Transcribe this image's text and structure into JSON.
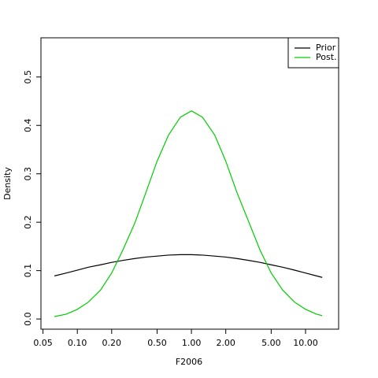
{
  "chart_data": {
    "type": "line",
    "xlabel": "F2006",
    "ylabel": "Density",
    "x": [
      0.063,
      0.08,
      0.1,
      0.125,
      0.16,
      0.2,
      0.25,
      0.32,
      0.4,
      0.5,
      0.63,
      0.8,
      1,
      1.25,
      1.6,
      2,
      2.5,
      3.2,
      4,
      5,
      6.3,
      8,
      10,
      12.5,
      14
    ],
    "series": [
      {
        "name": "Prior",
        "color": "#000000",
        "values": [
          0.089,
          0.095,
          0.101,
          0.107,
          0.112,
          0.117,
          0.121,
          0.125,
          0.128,
          0.13,
          0.132,
          0.133,
          0.133,
          0.132,
          0.13,
          0.128,
          0.125,
          0.121,
          0.117,
          0.112,
          0.107,
          0.101,
          0.095,
          0.089,
          0.086
        ]
      },
      {
        "name": "Post.",
        "color": "#00cd00",
        "values": [
          0.005,
          0.01,
          0.02,
          0.035,
          0.06,
          0.095,
          0.142,
          0.199,
          0.262,
          0.326,
          0.38,
          0.417,
          0.43,
          0.417,
          0.38,
          0.326,
          0.262,
          0.199,
          0.142,
          0.095,
          0.06,
          0.035,
          0.02,
          0.01,
          0.007
        ]
      }
    ],
    "xscale": "log",
    "xlim": [
      0.048,
      19.5
    ],
    "xticks": [
      0.05,
      {
        "value": 0.1,
        "label": "0.10"
      },
      {
        "value": 0.2,
        "label": "0.20"
      },
      {
        "value": 0.5,
        "label": "0.50"
      },
      {
        "value": 1,
        "label": "1.00"
      },
      {
        "value": 2,
        "label": "2.00"
      },
      {
        "value": 5,
        "label": "5.00"
      },
      {
        "value": 10,
        "label": "10.00"
      }
    ],
    "ylim": [
      -0.021,
      0.581
    ],
    "yticks": [
      {
        "value": 0,
        "label": "0.0"
      },
      0.1,
      0.2,
      0.3,
      0.4,
      0.5
    ],
    "legend": "topright"
  }
}
